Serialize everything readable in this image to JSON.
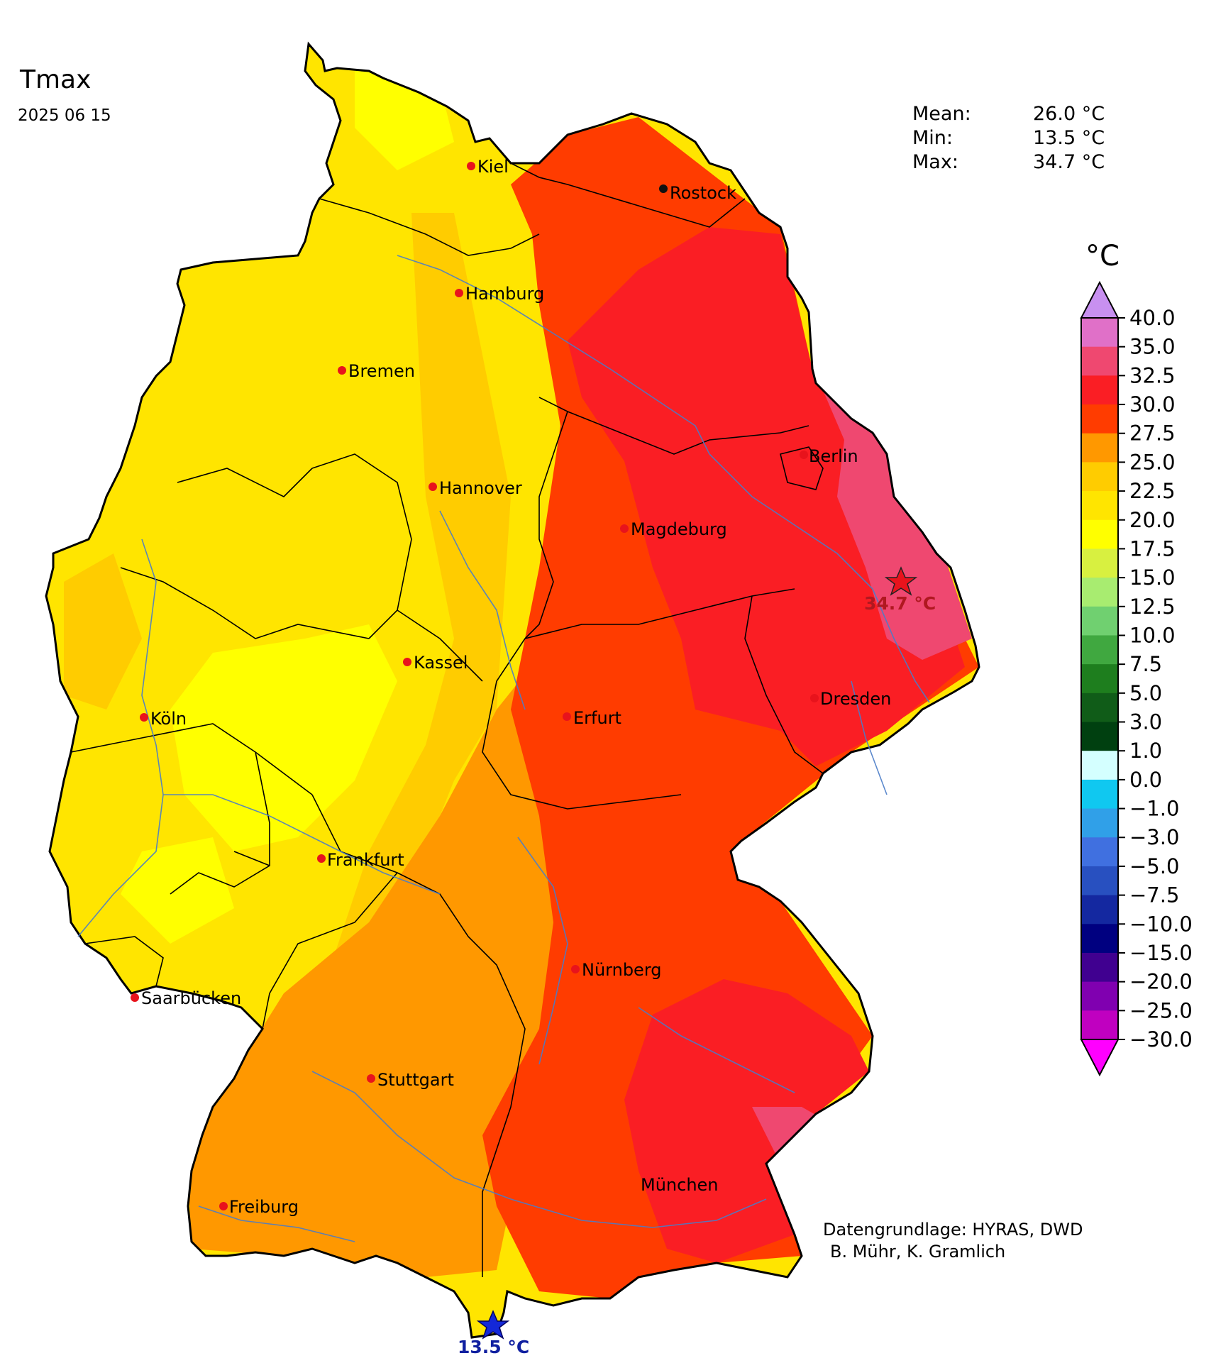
{
  "header": {
    "title": "Tmax",
    "date": "2025 06 15"
  },
  "stats": {
    "mean_label": "Mean:",
    "mean_value": "26.0 °C",
    "min_label": "Min:",
    "min_value": "13.5 °C",
    "max_label": "Max:",
    "max_value": "34.7 °C"
  },
  "credits": {
    "line1": "Datengrundlage: HYRAS, DWD",
    "line2": "B. Mühr, K. Gramlich"
  },
  "legend": {
    "unit": "°C",
    "ticks": [
      "40.0",
      "35.0",
      "32.5",
      "30.0",
      "27.5",
      "25.0",
      "22.5",
      "20.0",
      "17.5",
      "15.0",
      "12.5",
      "10.0",
      "7.5",
      "5.0",
      "3.0",
      "1.0",
      "0.0",
      "−1.0",
      "−3.0",
      "−5.0",
      "−7.5",
      "−10.0",
      "−15.0",
      "−20.0",
      "−25.0",
      "−30.0"
    ],
    "colors_top_to_bottom": [
      "#e070c8",
      "#ef4870",
      "#fa1e24",
      "#ff3c00",
      "#ff9800",
      "#ffcc00",
      "#ffe500",
      "#ffff00",
      "#d8f040",
      "#a8ec70",
      "#70d070",
      "#40a840",
      "#1e7e1e",
      "#105c18",
      "#004010",
      "#d4ffff",
      "#10c8f0",
      "#30a0e8",
      "#4070e0",
      "#2850c0",
      "#1428a0",
      "#000080",
      "#400090",
      "#8000b0",
      "#c000c0"
    ],
    "over_color": "#c890f0",
    "under_color": "#ff00ff"
  },
  "cities": [
    "Kiel",
    "Rostock",
    "Hamburg",
    "Bremen",
    "Berlin",
    "Hannover",
    "Magdeburg",
    "Kassel",
    "Köln",
    "Erfurt",
    "Dresden",
    "Frankfurt",
    "Nürnberg",
    "Saarbücken",
    "Stuttgart",
    "München",
    "Freiburg"
  ],
  "extremes": {
    "max_label": "34.7 °C",
    "min_label": "13.5 °C"
  }
}
